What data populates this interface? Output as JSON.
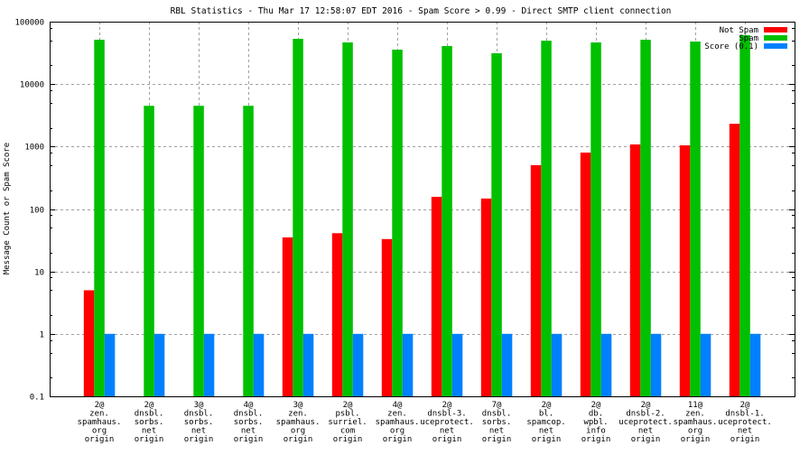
{
  "chart_data": {
    "type": "bar",
    "title": "RBL Statistics - Thu Mar 17 12:58:07 EDT 2016 - Spam Score > 0.99 - Direct SMTP client connection",
    "xlabel": "",
    "ylabel": "Message Count or Spam Score",
    "yscale": "log",
    "ylim": [
      0.1,
      100000
    ],
    "yticks": [
      "0.1",
      "1",
      "10",
      "100",
      "1000",
      "10000",
      "100000"
    ],
    "ytick_values": [
      0.1,
      1,
      10,
      100,
      1000,
      10000,
      100000
    ],
    "grid": true,
    "legend_position": "top-right",
    "categories": [
      [
        "2@",
        "zen.",
        "spamhaus.",
        "org",
        "origin"
      ],
      [
        "2@",
        "dnsbl.",
        "sorbs.",
        "net",
        "origin"
      ],
      [
        "3@",
        "dnsbl.",
        "sorbs.",
        "net",
        "origin"
      ],
      [
        "4@",
        "dnsbl.",
        "sorbs.",
        "net",
        "origin"
      ],
      [
        "3@",
        "zen.",
        "spamhaus.",
        "org",
        "origin"
      ],
      [
        "2@",
        "psbl.",
        "surriel.",
        "com",
        "origin"
      ],
      [
        "4@",
        "zen.",
        "spamhaus.",
        "org",
        "origin"
      ],
      [
        "2@",
        "dnsbl-3.",
        "uceprotect.",
        "net",
        "origin"
      ],
      [
        "7@",
        "dnsbl.",
        "sorbs.",
        "net",
        "origin"
      ],
      [
        "2@",
        "bl.",
        "spamcop.",
        "net",
        "origin"
      ],
      [
        "2@",
        "db.",
        "wpbl.",
        "info",
        "origin"
      ],
      [
        "2@",
        "dnsbl-2.",
        "uceprotect.",
        "net",
        "origin"
      ],
      [
        "11@",
        "zen.",
        "spamhaus.",
        "org",
        "origin"
      ],
      [
        "2@",
        "dnsbl-1.",
        "uceprotect.",
        "net",
        "origin"
      ]
    ],
    "series": [
      {
        "name": "Not Spam",
        "color": "#ff0000",
        "values": [
          5,
          null,
          null,
          null,
          35,
          41,
          33,
          157,
          147,
          502,
          801,
          1080,
          1045,
          2320
        ]
      },
      {
        "name": "Spam",
        "color": "#00c000",
        "values": [
          51400,
          4500,
          4500,
          4500,
          53100,
          46500,
          35600,
          40700,
          31200,
          49600,
          46500,
          51400,
          48000,
          60700
        ]
      },
      {
        "name": "Score (0.1)",
        "color": "#0080ff",
        "values": [
          1,
          1,
          1,
          1,
          1,
          1,
          1,
          1,
          1,
          1,
          1,
          1,
          1,
          1
        ]
      }
    ]
  }
}
